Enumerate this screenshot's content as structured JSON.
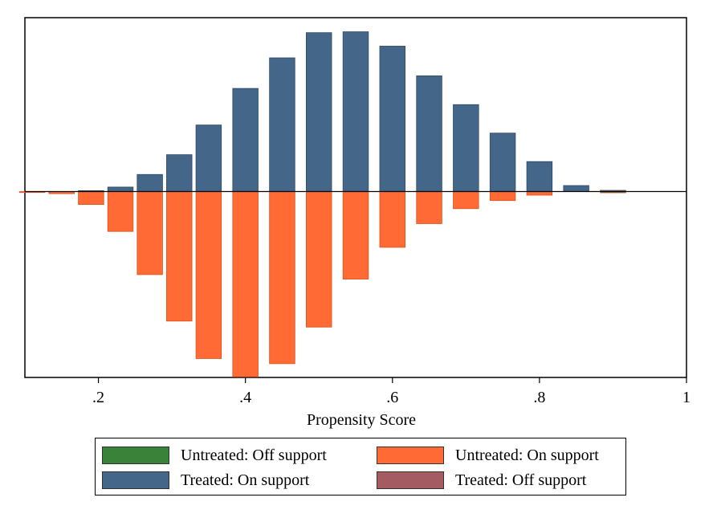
{
  "chart_data": {
    "type": "bar",
    "title": "",
    "xlabel": "Propensity Score",
    "ylabel": "",
    "xlim": [
      0.1,
      1.0
    ],
    "ylim": [
      -0.62,
      0.58
    ],
    "x_ticks": [
      0.2,
      0.4,
      0.6,
      0.8,
      1.0
    ],
    "x_tick_labels": [
      ".2",
      ".4",
      ".6",
      ".8",
      "1"
    ],
    "bin_width": 0.04,
    "series": [
      {
        "name": "Treated: On support",
        "color": "#436689",
        "direction": "up",
        "bins": [
          {
            "x": 0.15,
            "value": 0.0
          },
          {
            "x": 0.19,
            "value": 0.003
          },
          {
            "x": 0.23,
            "value": 0.015
          },
          {
            "x": 0.27,
            "value": 0.057
          },
          {
            "x": 0.31,
            "value": 0.123
          },
          {
            "x": 0.35,
            "value": 0.222
          },
          {
            "x": 0.4,
            "value": 0.344
          },
          {
            "x": 0.45,
            "value": 0.446
          },
          {
            "x": 0.5,
            "value": 0.53
          },
          {
            "x": 0.55,
            "value": 0.533
          },
          {
            "x": 0.6,
            "value": 0.485
          },
          {
            "x": 0.65,
            "value": 0.386
          },
          {
            "x": 0.7,
            "value": 0.29
          },
          {
            "x": 0.75,
            "value": 0.195
          },
          {
            "x": 0.8,
            "value": 0.1
          },
          {
            "x": 0.85,
            "value": 0.02
          }
        ]
      },
      {
        "name": "Treated: Off support",
        "color": "#a55b62",
        "direction": "up",
        "bins": [
          {
            "x": 0.9,
            "value": 0.004
          }
        ]
      },
      {
        "name": "Untreated: On support",
        "color": "#ff6a35",
        "direction": "down",
        "bins": [
          {
            "x": 0.11,
            "value": 0.002
          },
          {
            "x": 0.15,
            "value": 0.007
          },
          {
            "x": 0.19,
            "value": 0.043
          },
          {
            "x": 0.23,
            "value": 0.133
          },
          {
            "x": 0.27,
            "value": 0.277
          },
          {
            "x": 0.31,
            "value": 0.432
          },
          {
            "x": 0.35,
            "value": 0.557
          },
          {
            "x": 0.4,
            "value": 0.618
          },
          {
            "x": 0.45,
            "value": 0.574
          },
          {
            "x": 0.5,
            "value": 0.452
          },
          {
            "x": 0.55,
            "value": 0.292
          },
          {
            "x": 0.6,
            "value": 0.186
          },
          {
            "x": 0.65,
            "value": 0.107
          },
          {
            "x": 0.7,
            "value": 0.057
          },
          {
            "x": 0.75,
            "value": 0.03
          },
          {
            "x": 0.8,
            "value": 0.012
          }
        ]
      },
      {
        "name": "Untreated: Off support",
        "color": "#3a823a",
        "direction": "down",
        "bins": [
          {
            "x": 0.9,
            "value": 0.004
          }
        ]
      }
    ],
    "legend": {
      "position": "bottom",
      "items": [
        {
          "label": "Untreated: Off support",
          "color": "#3a823a"
        },
        {
          "label": "Untreated: On support",
          "color": "#ff6a35"
        },
        {
          "label": "Treated: On support",
          "color": "#436689"
        },
        {
          "label": "Treated: Off support",
          "color": "#a55b62"
        }
      ]
    }
  }
}
